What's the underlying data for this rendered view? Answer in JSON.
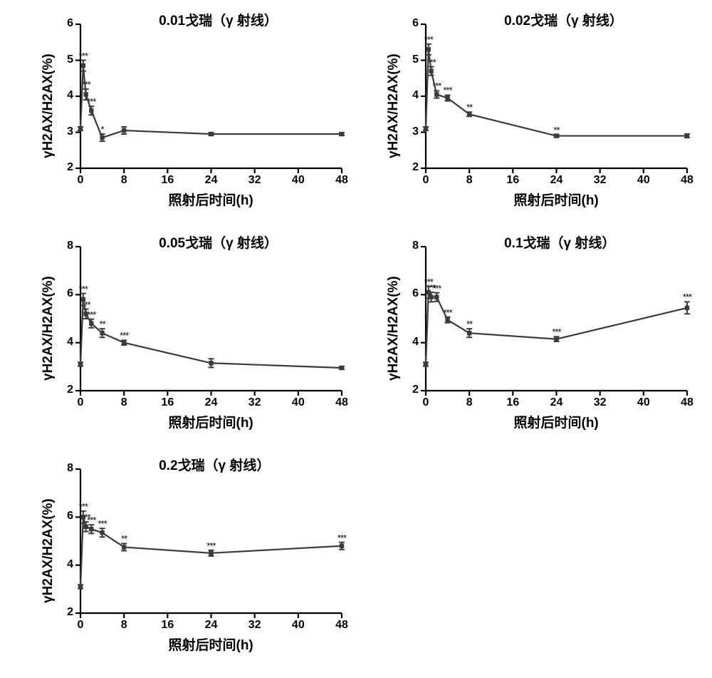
{
  "common": {
    "x_values": [
      0,
      0.5,
      1,
      2,
      4,
      8,
      24,
      48
    ],
    "x_ticks": [
      0,
      8,
      16,
      24,
      32,
      40,
      48
    ],
    "y_label": "γH2AX/H2AX(%)",
    "x_label": "照射后时间(h)",
    "line_color": "#3b3b3b",
    "axis_color": "#000000",
    "background_color": "#ffffff",
    "axis_width": 2.2,
    "line_width": 2.2,
    "marker_size": 3.2,
    "err_cap_half": 4,
    "title_fontsize": 19,
    "label_fontsize": 19,
    "tick_fontsize": 16,
    "tick_fontweight": 700,
    "sig_fontsize": 13
  },
  "panels": [
    {
      "title": "0.01戈瑞（γ 射线）",
      "y_min": 2,
      "y_max": 6,
      "y_ticks": [
        2,
        3,
        4,
        5,
        6
      ],
      "values": [
        3.1,
        4.85,
        4.05,
        3.6,
        2.85,
        3.05,
        2.95,
        2.95
      ],
      "errs": [
        0.05,
        0.15,
        0.15,
        0.12,
        0.1,
        0.1,
        0.04,
        0.04
      ],
      "sigs": [
        "",
        "***",
        "***",
        "***",
        "*",
        "",
        "",
        ""
      ]
    },
    {
      "title": "0.02戈瑞（γ 射线）",
      "y_min": 2,
      "y_max": 6,
      "y_ticks": [
        2,
        3,
        4,
        5,
        6
      ],
      "values": [
        3.1,
        5.3,
        4.7,
        4.05,
        3.95,
        3.5,
        2.9,
        2.9
      ],
      "errs": [
        0.05,
        0.15,
        0.12,
        0.1,
        0.08,
        0.06,
        0.04,
        0.05
      ],
      "sigs": [
        "",
        "***",
        "***",
        "***",
        "***",
        "**",
        "**",
        ""
      ]
    },
    {
      "title": "0.05戈瑞（γ 射线）",
      "y_min": 2,
      "y_max": 8,
      "y_ticks": [
        2,
        4,
        6,
        8
      ],
      "values": [
        3.1,
        5.8,
        5.2,
        4.8,
        4.4,
        4.0,
        3.15,
        2.95
      ],
      "errs": [
        0.08,
        0.25,
        0.2,
        0.18,
        0.18,
        0.1,
        0.18,
        0.06
      ],
      "sigs": [
        "",
        "***",
        "***",
        "***",
        "**",
        "***",
        "",
        ""
      ]
    },
    {
      "title": "0.1戈瑞（γ 射线）",
      "y_min": 2,
      "y_max": 8,
      "y_ticks": [
        2,
        4,
        6,
        8
      ],
      "values": [
        3.1,
        6.1,
        5.9,
        5.9,
        4.95,
        4.4,
        4.15,
        5.45
      ],
      "errs": [
        0.08,
        0.25,
        0.2,
        0.18,
        0.12,
        0.18,
        0.1,
        0.25
      ],
      "sigs": [
        "",
        "***",
        "***",
        "***",
        "***",
        "**",
        "***",
        "***"
      ]
    },
    {
      "title": "0.2戈瑞（γ 射线）",
      "y_min": 2,
      "y_max": 8,
      "y_ticks": [
        2,
        4,
        6,
        8
      ],
      "values": [
        3.1,
        6.0,
        5.6,
        5.5,
        5.35,
        4.75,
        4.5,
        4.8
      ],
      "errs": [
        0.08,
        0.25,
        0.2,
        0.18,
        0.18,
        0.15,
        0.12,
        0.15
      ],
      "sigs": [
        "",
        "***",
        "***",
        "***",
        "***",
        "**",
        "***",
        "***"
      ]
    }
  ]
}
